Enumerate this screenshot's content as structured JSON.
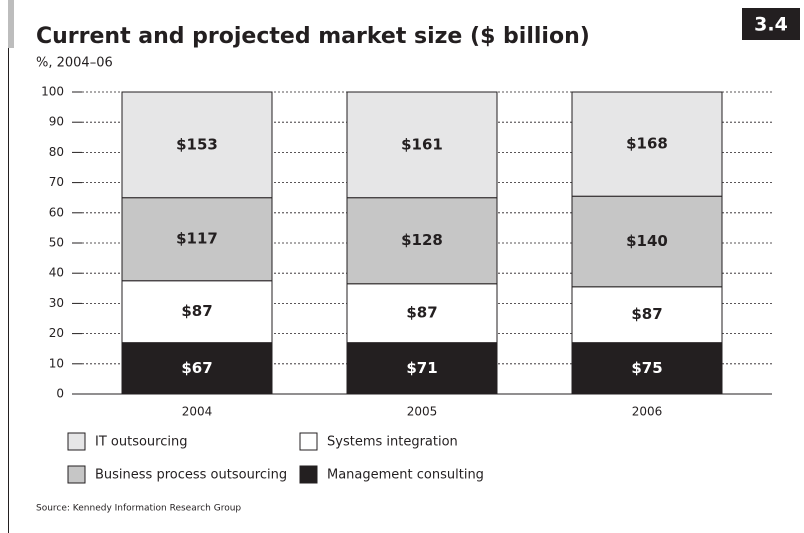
{
  "chart_data": {
    "type": "stacked_bar",
    "figure_number": "3.4",
    "title": "Current and projected market size ($ billion)",
    "subtitle": "%, 2004–06",
    "source": "Source: Kennedy Information Research Group",
    "categories": [
      "2004",
      "2005",
      "2006"
    ],
    "series": [
      {
        "name": "Management consulting",
        "color": "#231f20",
        "values": [
          17,
          17,
          17
        ],
        "segment_labels": [
          "$67",
          "$71",
          "$75"
        ]
      },
      {
        "name": "Systems integration",
        "color": "#ffffff",
        "values": [
          20.5,
          19.5,
          18.5
        ],
        "segment_labels": [
          "$87",
          "$87",
          "$87"
        ]
      },
      {
        "name": "Business process outsourcing",
        "color": "#c6c6c6",
        "values": [
          27.5,
          28.5,
          30
        ],
        "segment_labels": [
          "$117",
          "$128",
          "$140"
        ]
      },
      {
        "name": "IT outsourcing",
        "color": "#e6e6e7",
        "values": [
          35,
          35,
          34.5
        ],
        "segment_labels": [
          "$153",
          "$161",
          "$168"
        ]
      }
    ],
    "ylim": [
      0,
      100
    ],
    "yticks": [
      0,
      10,
      20,
      30,
      40,
      50,
      60,
      70,
      80,
      90,
      100
    ],
    "grid": true
  }
}
